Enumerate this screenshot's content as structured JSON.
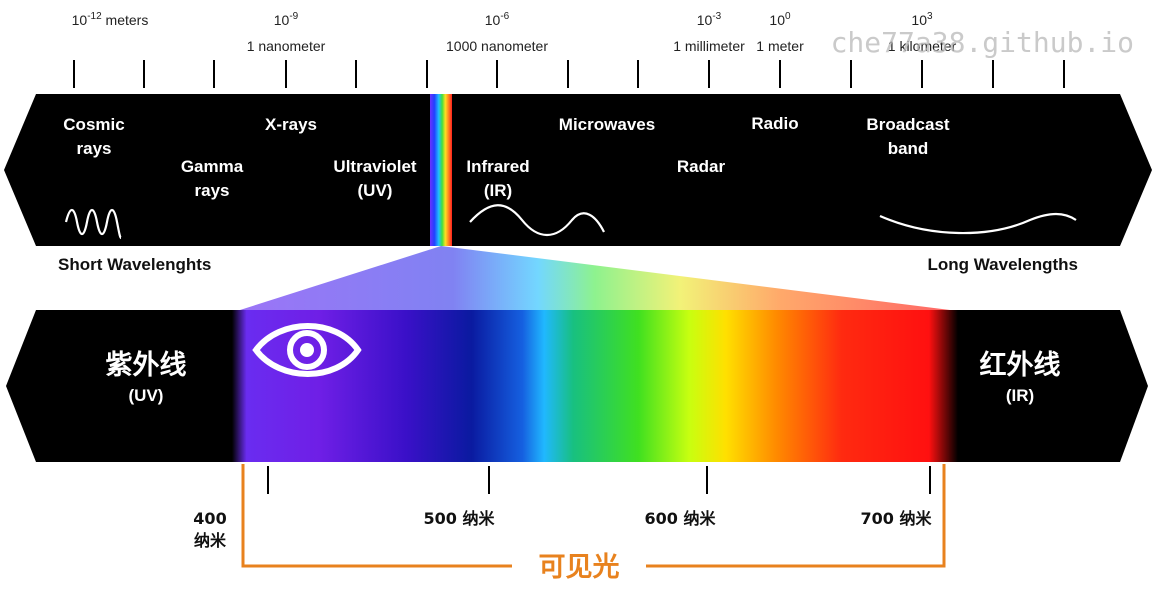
{
  "watermark": "che77a38.github.io",
  "scale": {
    "exponents": [
      {
        "base": "10",
        "exp": "-12",
        "suffix": " meters",
        "sub": ""
      },
      {
        "base": "10",
        "exp": "-9",
        "suffix": "",
        "sub": "1 nanometer"
      },
      {
        "base": "10",
        "exp": "-6",
        "suffix": "",
        "sub": "1000 nanometer"
      },
      {
        "base": "10",
        "exp": "-3",
        "suffix": "",
        "sub": "1 millimeter"
      },
      {
        "base": "10",
        "exp": "0",
        "suffix": "",
        "sub": "1 meter"
      },
      {
        "base": "10",
        "exp": "3",
        "suffix": "",
        "sub": "1 kilometer"
      }
    ]
  },
  "spectrum": {
    "bands": [
      {
        "id": "cosmic",
        "lines": [
          "Cosmic",
          "rays"
        ]
      },
      {
        "id": "gamma",
        "lines": [
          "Gamma",
          "rays"
        ]
      },
      {
        "id": "xrays",
        "lines": [
          "X-rays"
        ]
      },
      {
        "id": "uv",
        "lines": [
          "Ultraviolet",
          "(UV)"
        ]
      },
      {
        "id": "infrared",
        "lines": [
          "Infrared",
          "(IR)"
        ]
      },
      {
        "id": "microwaves",
        "lines": [
          "Microwaves"
        ]
      },
      {
        "id": "radar",
        "lines": [
          "Radar"
        ]
      },
      {
        "id": "radio",
        "lines": [
          "Radio"
        ]
      },
      {
        "id": "broadcast",
        "lines": [
          "Broadcast",
          "band"
        ]
      }
    ],
    "short_label": "Short Wavelenghts",
    "long_label": "Long Wavelengths"
  },
  "visible": {
    "uv_title": "紫外线",
    "uv_sub": "(UV)",
    "ir_title": "红外线",
    "ir_sub": "(IR)",
    "ticks": [
      {
        "lines": [
          "400",
          "纳米"
        ]
      },
      {
        "lines": [
          "500 纳米"
        ]
      },
      {
        "lines": [
          "600  纳米"
        ]
      },
      {
        "lines": [
          "700 纳米"
        ]
      }
    ],
    "bracket_label": "可见光",
    "bracket_color": "#e8821e",
    "uv_color": "#7a2cff",
    "ir_color": "#ff2a1a"
  }
}
